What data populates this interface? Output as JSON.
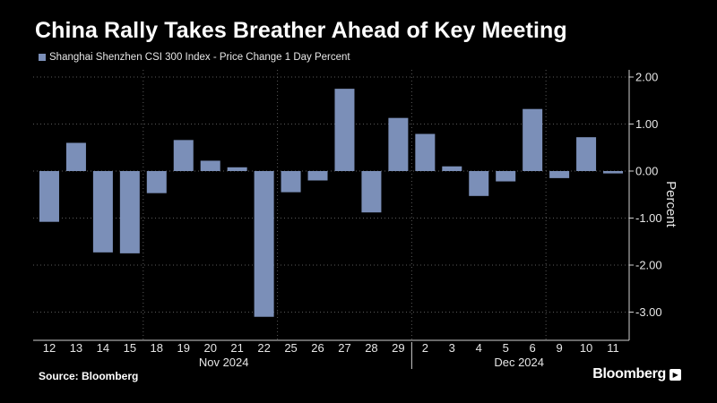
{
  "title": "China Rally Takes Breather Ahead of Key Meeting",
  "source": "Source: Bloomberg",
  "brand": "Bloomberg",
  "brand_icon": "terminal-icon",
  "colors": {
    "bar": "#7b8fb8",
    "background": "#000000",
    "grid": "#5a5a5a"
  },
  "chart_data": {
    "type": "bar",
    "title": "China Rally Takes Breather Ahead of Key Meeting",
    "legend": "Shanghai Shenzhen CSI 300 Index - Price Change 1 Day Percent",
    "ylabel": "Percent",
    "xlabel": "",
    "ylim": [
      -3.6,
      2.2
    ],
    "yticks": [
      2,
      1,
      0,
      -1,
      -2,
      -3
    ],
    "ytick_labels": [
      "2.00",
      "1.00",
      "0.00",
      "-1.00",
      "-2.00",
      "-3.00"
    ],
    "categories": [
      "12",
      "13",
      "14",
      "15",
      "18",
      "19",
      "20",
      "21",
      "22",
      "25",
      "26",
      "27",
      "28",
      "29",
      "2",
      "3",
      "4",
      "5",
      "6",
      "9",
      "10",
      "11"
    ],
    "values": [
      -1.08,
      0.6,
      -1.73,
      -1.75,
      -0.47,
      0.66,
      0.22,
      0.08,
      -3.1,
      -0.45,
      -0.2,
      1.75,
      -0.88,
      1.13,
      0.79,
      0.1,
      -0.53,
      -0.22,
      1.32,
      -0.15,
      0.72,
      -0.05
    ],
    "months": [
      {
        "label": "Nov 2024",
        "start": 0,
        "end": 13
      },
      {
        "label": "Dec 2024",
        "start": 14,
        "end": 21
      }
    ]
  }
}
